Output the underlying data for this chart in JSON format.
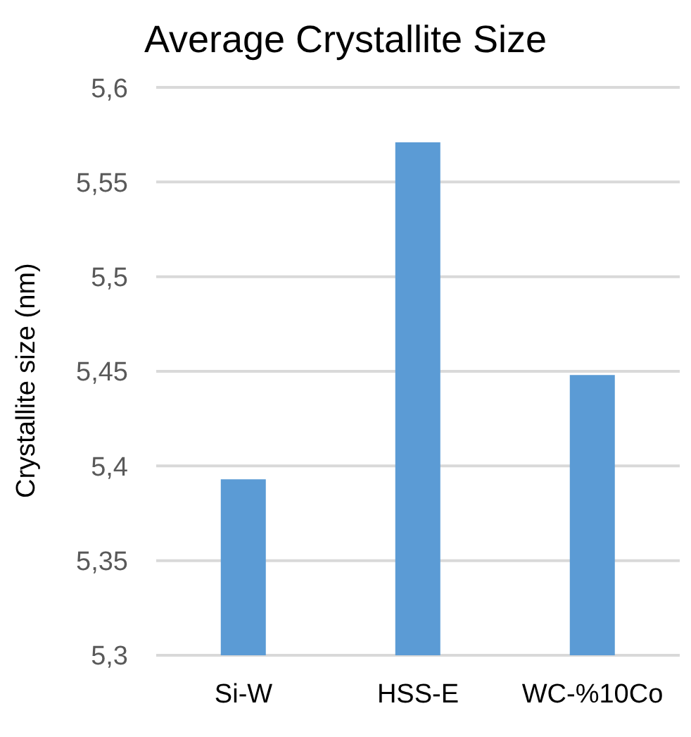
{
  "chart_data": {
    "type": "bar",
    "title": "Average Crystallite Size",
    "ylabel": "Crystallite size (nm)",
    "categories": [
      "Si-W",
      "HSS-E",
      "WC-%10Co"
    ],
    "values": [
      5.393,
      5.571,
      5.448
    ],
    "color": "#5b9bd5",
    "ylim": [
      5.3,
      5.6
    ],
    "yticks": [
      {
        "value": 5.3,
        "label": "5,3"
      },
      {
        "value": 5.35,
        "label": "5,35"
      },
      {
        "value": 5.4,
        "label": "5,4"
      },
      {
        "value": 5.45,
        "label": "5,45"
      },
      {
        "value": 5.5,
        "label": "5,5"
      },
      {
        "value": 5.55,
        "label": "5,55"
      },
      {
        "value": 5.6,
        "label": "5,6"
      }
    ],
    "grid": "y",
    "legend": false
  }
}
